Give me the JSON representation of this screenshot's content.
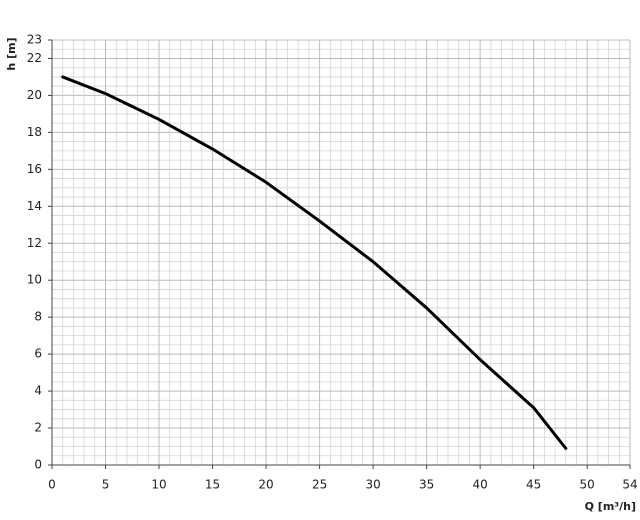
{
  "chart_data": {
    "type": "line",
    "x_label": "Q [m³/h]",
    "y_label": "h [m]",
    "x": [
      1,
      5,
      10,
      15,
      20,
      25,
      30,
      35,
      40,
      45,
      48
    ],
    "series": [
      {
        "color": "#000000",
        "values": [
          21,
          20.1,
          18.7,
          17.1,
          15.3,
          13.2,
          11,
          8.5,
          5.7,
          3.1,
          0.9
        ]
      }
    ],
    "xlim": [
      0,
      54
    ],
    "xticks": [
      0,
      5,
      10,
      15,
      20,
      25,
      30,
      35,
      40,
      45,
      50,
      54
    ],
    "ylim": [
      0,
      23
    ],
    "yticks": [
      0,
      2,
      4,
      6,
      8,
      10,
      12,
      14,
      16,
      18,
      20,
      22,
      23
    ],
    "grid": true
  }
}
